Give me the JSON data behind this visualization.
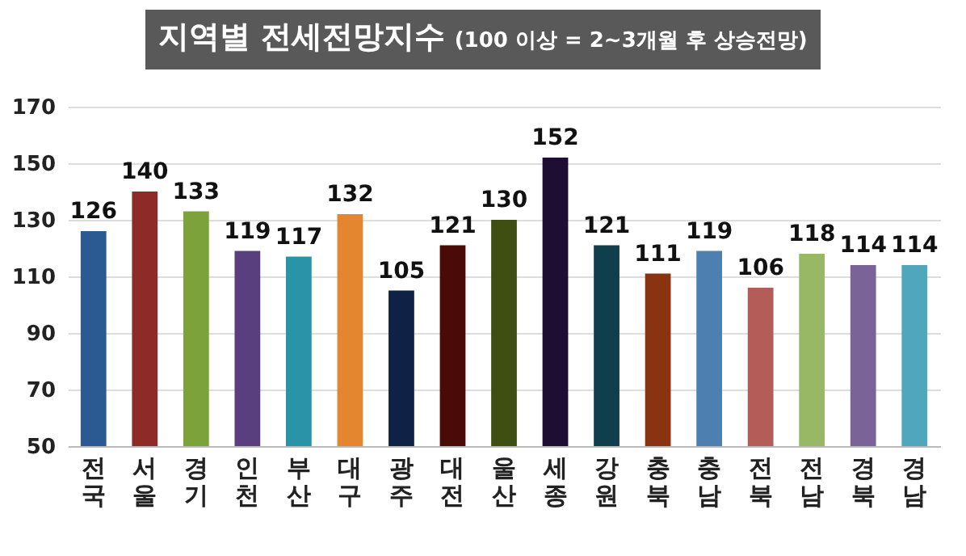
{
  "chart_data": {
    "type": "bar",
    "title": "지역별 전세전망지수",
    "subtitle": "(100 이상 = 2~3개월 후 상승전망)",
    "categories": [
      "전국",
      "서울",
      "경기",
      "인천",
      "부산",
      "대구",
      "광주",
      "대전",
      "울산",
      "세종",
      "강원",
      "충북",
      "충남",
      "전북",
      "전남",
      "경북",
      "경남"
    ],
    "values": [
      126,
      140,
      133,
      119,
      117,
      132,
      105,
      121,
      130,
      152,
      121,
      111,
      119,
      106,
      118,
      114,
      114
    ],
    "colors": [
      "#2b5a93",
      "#8e2a27",
      "#7ca23a",
      "#5a3f7e",
      "#2a93a8",
      "#e4862f",
      "#0f2145",
      "#4a0a08",
      "#3f4f12",
      "#1f0e33",
      "#0f3f4c",
      "#8a3310",
      "#4d7fb0",
      "#b45c58",
      "#98b865",
      "#7a6497",
      "#4fa6bd"
    ],
    "ylim": [
      50,
      170
    ],
    "yticks": [
      50,
      70,
      90,
      110,
      130,
      150,
      170
    ],
    "grid": "y",
    "data_labels": true
  }
}
